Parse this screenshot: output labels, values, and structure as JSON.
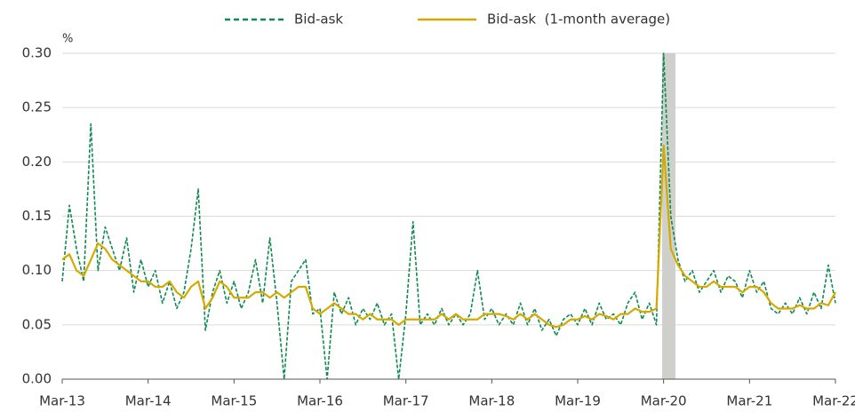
{
  "chart_data": {
    "type": "line",
    "y_unit_label": "%",
    "categories": [
      "Mar-13",
      null,
      null,
      null,
      null,
      null,
      null,
      null,
      null,
      null,
      null,
      null,
      "Mar-14",
      null,
      null,
      null,
      null,
      null,
      null,
      null,
      null,
      null,
      null,
      null,
      "Mar-15",
      null,
      null,
      null,
      null,
      null,
      null,
      null,
      null,
      null,
      null,
      null,
      "Mar-16",
      null,
      null,
      null,
      null,
      null,
      null,
      null,
      null,
      null,
      null,
      null,
      "Mar-17",
      null,
      null,
      null,
      null,
      null,
      null,
      null,
      null,
      null,
      null,
      null,
      "Mar-18",
      null,
      null,
      null,
      null,
      null,
      null,
      null,
      null,
      null,
      null,
      null,
      "Mar-19",
      null,
      null,
      null,
      null,
      null,
      null,
      null,
      null,
      null,
      null,
      null,
      "Mar-20",
      null,
      null,
      null,
      null,
      null,
      null,
      null,
      null,
      null,
      null,
      null,
      "Mar-21",
      null,
      null,
      null,
      null,
      null,
      null,
      null,
      null,
      null,
      null,
      null,
      "Mar-22"
    ],
    "series": [
      {
        "name": "Bid-ask",
        "color": "#108a50",
        "dash": true,
        "values": [
          0.09,
          0.16,
          0.12,
          0.09,
          0.235,
          0.1,
          0.14,
          0.12,
          0.1,
          0.13,
          0.08,
          0.11,
          0.085,
          0.1,
          0.07,
          0.09,
          0.065,
          0.08,
          0.12,
          0.175,
          0.045,
          0.08,
          0.1,
          0.07,
          0.09,
          0.065,
          0.08,
          0.11,
          0.07,
          0.13,
          0.07,
          0.0,
          0.09,
          0.1,
          0.11,
          0.06,
          0.065,
          0.0,
          0.08,
          0.06,
          0.075,
          0.05,
          0.065,
          0.055,
          0.07,
          0.05,
          0.06,
          0.0,
          0.06,
          0.145,
          0.05,
          0.06,
          0.05,
          0.065,
          0.05,
          0.06,
          0.05,
          0.06,
          0.1,
          0.055,
          0.065,
          0.05,
          0.06,
          0.05,
          0.07,
          0.05,
          0.065,
          0.045,
          0.055,
          0.04,
          0.055,
          0.06,
          0.05,
          0.065,
          0.05,
          0.07,
          0.055,
          0.06,
          0.05,
          0.07,
          0.08,
          0.055,
          0.07,
          0.05,
          0.3,
          0.15,
          0.11,
          0.09,
          0.1,
          0.08,
          0.09,
          0.1,
          0.08,
          0.095,
          0.09,
          0.075,
          0.1,
          0.08,
          0.09,
          0.065,
          0.06,
          0.07,
          0.06,
          0.075,
          0.06,
          0.08,
          0.065,
          0.105,
          0.07
        ]
      },
      {
        "name": "Bid-ask  (1-month average)",
        "color": "#d4aa00",
        "dash": false,
        "values": [
          0.11,
          0.115,
          0.1,
          0.095,
          0.11,
          0.125,
          0.12,
          0.11,
          0.105,
          0.1,
          0.095,
          0.09,
          0.09,
          0.085,
          0.085,
          0.09,
          0.08,
          0.075,
          0.085,
          0.09,
          0.065,
          0.075,
          0.09,
          0.085,
          0.075,
          0.075,
          0.075,
          0.08,
          0.08,
          0.075,
          0.08,
          0.075,
          0.08,
          0.085,
          0.085,
          0.065,
          0.06,
          0.065,
          0.07,
          0.065,
          0.06,
          0.06,
          0.055,
          0.06,
          0.055,
          0.055,
          0.055,
          0.05,
          0.055,
          0.055,
          0.055,
          0.055,
          0.055,
          0.06,
          0.055,
          0.06,
          0.055,
          0.055,
          0.055,
          0.06,
          0.06,
          0.06,
          0.058,
          0.055,
          0.06,
          0.055,
          0.06,
          0.055,
          0.05,
          0.048,
          0.05,
          0.055,
          0.055,
          0.058,
          0.055,
          0.06,
          0.058,
          0.055,
          0.06,
          0.06,
          0.065,
          0.062,
          0.062,
          0.065,
          0.215,
          0.12,
          0.105,
          0.095,
          0.09,
          0.085,
          0.085,
          0.09,
          0.085,
          0.085,
          0.085,
          0.08,
          0.085,
          0.085,
          0.08,
          0.07,
          0.065,
          0.065,
          0.065,
          0.068,
          0.065,
          0.065,
          0.07,
          0.068,
          0.08
        ]
      }
    ],
    "ylim": [
      0,
      0.3
    ],
    "yticks": [
      {
        "value": 0,
        "label": "0.00"
      },
      0.05,
      {
        "value": 0.1,
        "label": "0.10"
      },
      0.15,
      {
        "value": 0.2,
        "label": "0.20"
      },
      0.25,
      {
        "value": 0.3,
        "label": "0.30"
      }
    ],
    "grid": true,
    "legend": "top"
  }
}
